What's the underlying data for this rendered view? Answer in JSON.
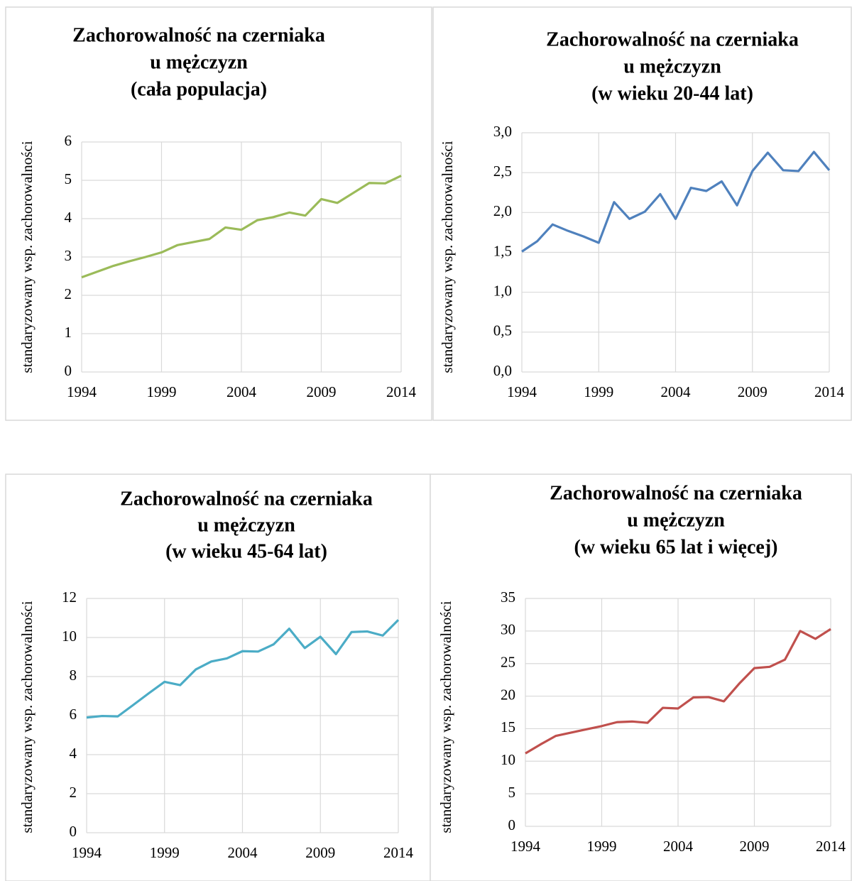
{
  "chart_data": [
    {
      "type": "line",
      "title": [
        "Zachorowalność na czerniaka",
        "u mężczyzn",
        "(cała populacja)"
      ],
      "y_label": "standaryzowany wsp. zachorowalności",
      "x": [
        1994,
        1995,
        1996,
        1997,
        1998,
        1999,
        2000,
        2001,
        2002,
        2003,
        2004,
        2005,
        2006,
        2007,
        2008,
        2009,
        2010,
        2011,
        2012,
        2013,
        2014
      ],
      "values": [
        2.47,
        2.62,
        2.77,
        2.89,
        3.0,
        3.12,
        3.31,
        3.39,
        3.47,
        3.77,
        3.71,
        3.96,
        4.04,
        4.16,
        4.08,
        4.51,
        4.41,
        4.67,
        4.93,
        4.92,
        5.12
      ],
      "color": "#9bbb59",
      "xlim": [
        1994,
        2014
      ],
      "xticks": [
        1994,
        1999,
        2004,
        2009,
        2014
      ],
      "ylim": [
        0,
        6
      ],
      "yticks": [
        0,
        1,
        2,
        3,
        4,
        5,
        6
      ],
      "grid": true
    },
    {
      "type": "line",
      "title": [
        "Zachorowalność na czerniaka",
        "u mężczyzn",
        "(w wieku 20-44 lat)"
      ],
      "y_label": "standaryzowany wsp. zachorowalności",
      "x": [
        1994,
        1995,
        1996,
        1997,
        1998,
        1999,
        2000,
        2001,
        2002,
        2003,
        2004,
        2005,
        2006,
        2007,
        2008,
        2009,
        2010,
        2011,
        2012,
        2013,
        2014
      ],
      "values": [
        1.51,
        1.64,
        1.85,
        1.77,
        1.7,
        1.62,
        2.13,
        1.92,
        2.01,
        2.23,
        1.92,
        2.31,
        2.27,
        2.39,
        2.09,
        2.52,
        2.75,
        2.53,
        2.52,
        2.76,
        2.53
      ],
      "color": "#4f81bd",
      "xlim": [
        1994,
        2014
      ],
      "xticks": [
        1994,
        1999,
        2004,
        2009,
        2014
      ],
      "ylim": [
        0,
        3
      ],
      "yticks": [
        {
          "value": 0,
          "label": "0,0"
        },
        {
          "value": 0.5,
          "label": "0,5"
        },
        {
          "value": 1,
          "label": "1,0"
        },
        {
          "value": 1.5,
          "label": "1,5"
        },
        {
          "value": 2,
          "label": "2,0"
        },
        {
          "value": 2.5,
          "label": "2,5"
        },
        {
          "value": 3,
          "label": "3,0"
        }
      ],
      "grid": true
    },
    {
      "type": "line",
      "title": [
        "Zachorowalność na czerniaka",
        "u mężczyzn",
        "(w wieku 45-64 lat)"
      ],
      "y_label": "standaryzowany wsp. zachorowalności",
      "x": [
        1994,
        1995,
        1996,
        1997,
        1998,
        1999,
        2000,
        2001,
        2002,
        2003,
        2004,
        2005,
        2006,
        2007,
        2008,
        2009,
        2010,
        2011,
        2012,
        2013,
        2014
      ],
      "values": [
        5.9,
        5.98,
        5.96,
        6.55,
        7.15,
        7.73,
        7.56,
        8.36,
        8.77,
        8.93,
        9.3,
        9.28,
        9.65,
        10.45,
        9.46,
        10.04,
        9.15,
        10.28,
        10.31,
        10.1,
        10.9
      ],
      "color": "#4bacc6",
      "xlim": [
        1994,
        2014
      ],
      "xticks": [
        1994,
        1999,
        2004,
        2009,
        2014
      ],
      "ylim": [
        0,
        12
      ],
      "yticks": [
        0,
        2,
        4,
        6,
        8,
        10,
        12
      ],
      "grid": true
    },
    {
      "type": "line",
      "title": [
        "Zachorowalność na czerniaka",
        "u mężczyzn",
        "(w wieku 65 lat i więcej)"
      ],
      "y_label": "standaryzowany wsp. zachorowalności",
      "x": [
        1994,
        1995,
        1996,
        1997,
        1998,
        1999,
        2000,
        2001,
        2002,
        2003,
        2004,
        2005,
        2006,
        2007,
        2008,
        2009,
        2010,
        2011,
        2012,
        2013,
        2014
      ],
      "values": [
        11.2,
        12.6,
        13.9,
        14.4,
        14.9,
        15.4,
        16.0,
        16.1,
        15.9,
        18.2,
        18.1,
        19.8,
        19.85,
        19.2,
        21.9,
        24.3,
        24.5,
        25.6,
        30.0,
        28.8,
        30.3
      ],
      "color": "#c0504d",
      "xlim": [
        1994,
        2014
      ],
      "xticks": [
        1994,
        1999,
        2004,
        2009,
        2014
      ],
      "ylim": [
        0,
        35
      ],
      "yticks": [
        0,
        5,
        10,
        15,
        20,
        25,
        30,
        35
      ],
      "grid": true
    }
  ]
}
